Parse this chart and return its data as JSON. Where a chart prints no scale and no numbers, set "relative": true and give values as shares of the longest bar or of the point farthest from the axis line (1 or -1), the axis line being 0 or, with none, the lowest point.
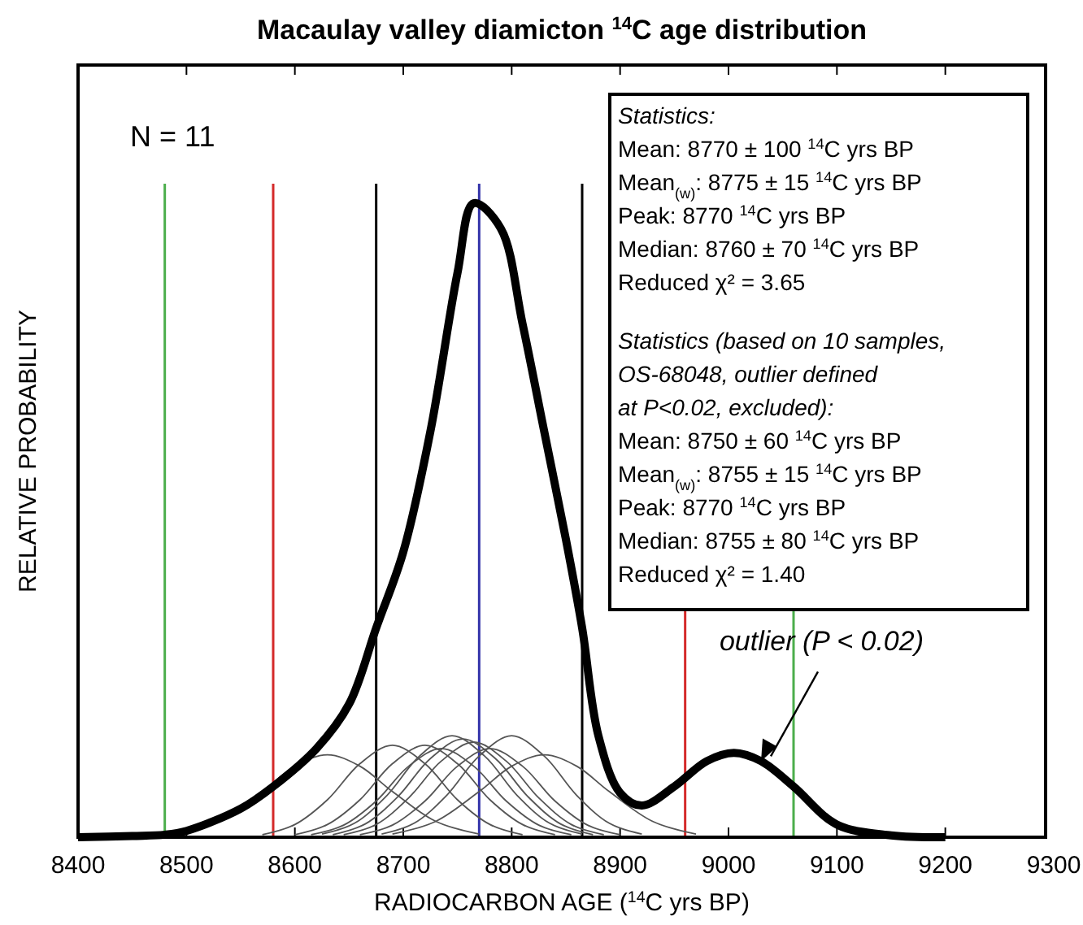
{
  "chart_data": {
    "type": "line",
    "title": "Macaulay valley diamicton $^{14}$C age distribution",
    "xlabel": "RADIOCARBON AGE ($^{14}$C yrs BP)",
    "ylabel": "RELATIVE PROBABILITY",
    "relative": true,
    "grid": false,
    "xlim": [
      8400,
      9300
    ],
    "xticks": [
      8400,
      8500,
      8600,
      8700,
      8800,
      8900,
      9000,
      9100,
      9200,
      9300
    ],
    "ref_lines": [
      {
        "axis": "x",
        "value": 8480,
        "color": "#4cae4c"
      },
      {
        "axis": "x",
        "value": 8580,
        "color": "#d42a2a"
      },
      {
        "axis": "x",
        "value": 8675,
        "color": "#000000"
      },
      {
        "axis": "x",
        "value": 8770,
        "color": "#3333aa"
      },
      {
        "axis": "x",
        "value": 8865,
        "color": "#000000"
      },
      {
        "axis": "x",
        "value": 8960,
        "color": "#d42a2a"
      },
      {
        "axis": "x",
        "value": 9060,
        "color": "#4cae4c"
      }
    ],
    "series": [
      {
        "type": "line",
        "color": "#555555",
        "x": [
          8490,
          8530,
          8570,
          8600,
          8630,
          8660,
          8690,
          8730,
          8770
        ],
        "values": [
          0.005,
          0.025,
          0.072,
          0.112,
          0.13,
          0.112,
          0.072,
          0.025,
          0.005
        ]
      },
      {
        "type": "line",
        "color": "#555555",
        "x": [
          8570,
          8600,
          8630,
          8660,
          8690,
          8720,
          8750,
          8780,
          8810
        ],
        "values": [
          0.004,
          0.02,
          0.059,
          0.116,
          0.145,
          0.116,
          0.059,
          0.02,
          0.004
        ]
      },
      {
        "type": "line",
        "color": "#555555",
        "x": [
          8600,
          8630,
          8660,
          8690,
          8720,
          8750,
          8780,
          8810,
          8840
        ],
        "values": [
          0.004,
          0.02,
          0.059,
          0.116,
          0.145,
          0.116,
          0.059,
          0.02,
          0.004
        ]
      },
      {
        "type": "line",
        "color": "#555555",
        "x": [
          8615,
          8645,
          8675,
          8705,
          8735,
          8765,
          8795,
          8825,
          8855
        ],
        "values": [
          0.004,
          0.019,
          0.057,
          0.112,
          0.14,
          0.112,
          0.057,
          0.019,
          0.004
        ]
      },
      {
        "type": "line",
        "color": "#555555",
        "x": [
          8625,
          8655,
          8685,
          8715,
          8745,
          8775,
          8805,
          8835,
          8865
        ],
        "values": [
          0.005,
          0.022,
          0.066,
          0.128,
          0.16,
          0.128,
          0.066,
          0.022,
          0.005
        ]
      },
      {
        "type": "line",
        "color": "#555555",
        "x": [
          8635,
          8665,
          8695,
          8725,
          8755,
          8785,
          8815,
          8845,
          8875
        ],
        "values": [
          0.004,
          0.021,
          0.064,
          0.124,
          0.155,
          0.124,
          0.064,
          0.021,
          0.004
        ]
      },
      {
        "type": "line",
        "color": "#555555",
        "x": [
          8645,
          8675,
          8705,
          8735,
          8765,
          8795,
          8825,
          8855,
          8885
        ],
        "values": [
          0.004,
          0.02,
          0.062,
          0.12,
          0.15,
          0.12,
          0.062,
          0.02,
          0.004
        ]
      },
      {
        "type": "line",
        "color": "#555555",
        "x": [
          8660,
          8690,
          8720,
          8750,
          8780,
          8810,
          8840,
          8870,
          8900
        ],
        "values": [
          0.004,
          0.019,
          0.057,
          0.112,
          0.14,
          0.112,
          0.057,
          0.019,
          0.004
        ]
      },
      {
        "type": "line",
        "color": "#555555",
        "x": [
          8680,
          8710,
          8740,
          8770,
          8800,
          8830,
          8860,
          8890,
          8920
        ],
        "values": [
          0.005,
          0.022,
          0.066,
          0.128,
          0.16,
          0.128,
          0.066,
          0.022,
          0.005
        ]
      },
      {
        "type": "line",
        "color": "#555555",
        "x": [
          8690,
          8730,
          8770,
          8800,
          8830,
          8860,
          8890,
          8930,
          8970
        ],
        "values": [
          0.005,
          0.025,
          0.072,
          0.112,
          0.13,
          0.112,
          0.072,
          0.025,
          0.005
        ]
      },
      {
        "type": "line",
        "color": "#000000",
        "x": [
          8400,
          8450,
          8480,
          8500,
          8550,
          8580,
          8620,
          8650,
          8675,
          8700,
          8725,
          8750,
          8765,
          8790,
          8810,
          8830,
          8850,
          8865,
          8880,
          8900,
          8920,
          8950,
          8980,
          9005,
          9030,
          9060,
          9100,
          9150,
          9200
        ],
        "values": [
          0,
          0.002,
          0.004,
          0.01,
          0.045,
          0.08,
          0.14,
          0.21,
          0.33,
          0.45,
          0.64,
          0.89,
          1,
          0.96,
          0.81,
          0.64,
          0.47,
          0.33,
          0.16,
          0.07,
          0.05,
          0.08,
          0.12,
          0.133,
          0.12,
          0.08,
          0.02,
          0.003,
          0
        ]
      }
    ],
    "annotations": [
      "N = 11",
      "Statistics:",
      "Mean: 8770 ± 100 $^{14}$C yrs BP",
      "Mean$_{(w)}$: 8775 ± 15 $^{14}$C yrs BP",
      "Peak: 8770 $^{14}$C yrs BP",
      "Median: 8760 ± 70 $^{14}$C yrs BP",
      "Reduced χ² = 3.65",
      "Statistics (based on 10 samples,",
      "OS-68048, outlier defined",
      "at P<0.02, excluded):",
      "Mean: 8750 ± 60 $^{14}$C yrs BP",
      "Mean$_{(w)}$: 8755 ± 15 $^{14}$C yrs BP",
      "Peak: 8770 $^{14}$C yrs BP",
      "Median: 8755 ± 80 $^{14}$C yrs BP",
      "Reduced χ² = 1.40",
      {
        "text": "outlier (P < 0.02)",
        "x": 9030,
        "y": 0.12
      }
    ]
  }
}
